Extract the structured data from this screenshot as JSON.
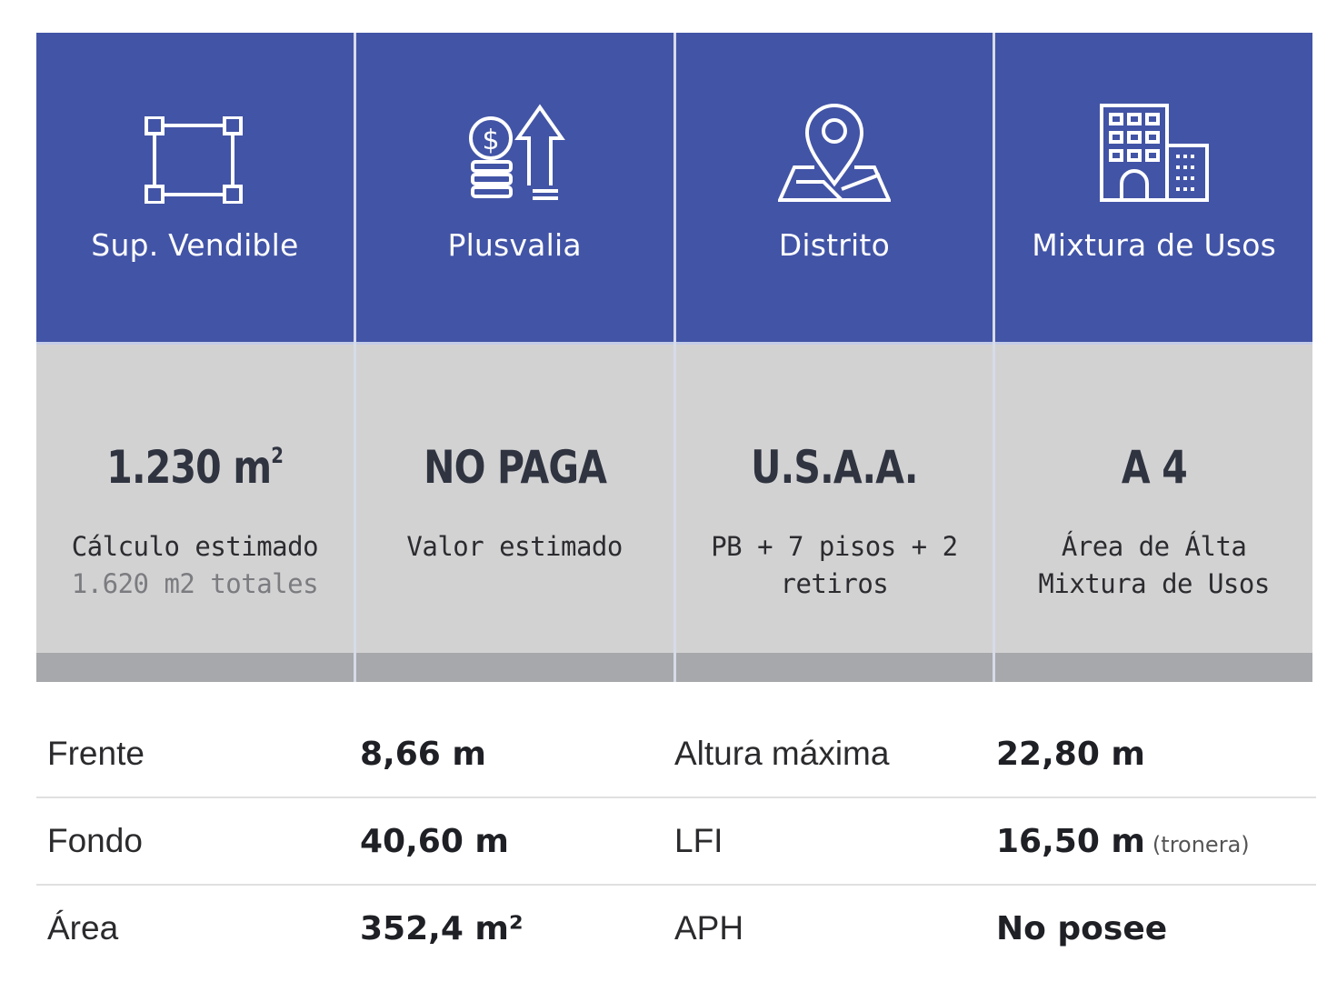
{
  "colors": {
    "header_blue": "#4254a6",
    "body_gray": "#d3d2d3",
    "foot_gray": "#a7a8ac"
  },
  "cards": [
    {
      "icon": "square-area-icon",
      "label": "Sup. Vendible",
      "value": "1.230 m",
      "value_sup": "2",
      "desc": "Cálculo estimado",
      "sub": "1.620 m2 totales"
    },
    {
      "icon": "money-growth-icon",
      "label": "Plusvalia",
      "value": "NO PAGA",
      "value_sup": "",
      "desc": "Valor estimado",
      "sub": ""
    },
    {
      "icon": "location-pin-icon",
      "label": "Distrito",
      "value": "U.S.A.A.",
      "value_sup": "",
      "desc": "PB + 7 pisos + 2 retiros",
      "sub": ""
    },
    {
      "icon": "buildings-icon",
      "label": "Mixtura de Usos",
      "value": "A 4",
      "value_sup": "",
      "desc": "Área de Álta\nMixtura de Usos",
      "sub": ""
    }
  ],
  "specs": [
    {
      "label1": "Frente",
      "value1": "8,66 m",
      "label2": "Altura máxima",
      "value2": "22,80 m",
      "note2": ""
    },
    {
      "label1": "Fondo",
      "value1": "40,60 m",
      "label2": "LFI",
      "value2": "16,50 m",
      "note2": "(tronera)"
    },
    {
      "label1": "Área",
      "value1": "352,4 m²",
      "label2": "APH",
      "value2": "No posee",
      "note2": ""
    }
  ]
}
